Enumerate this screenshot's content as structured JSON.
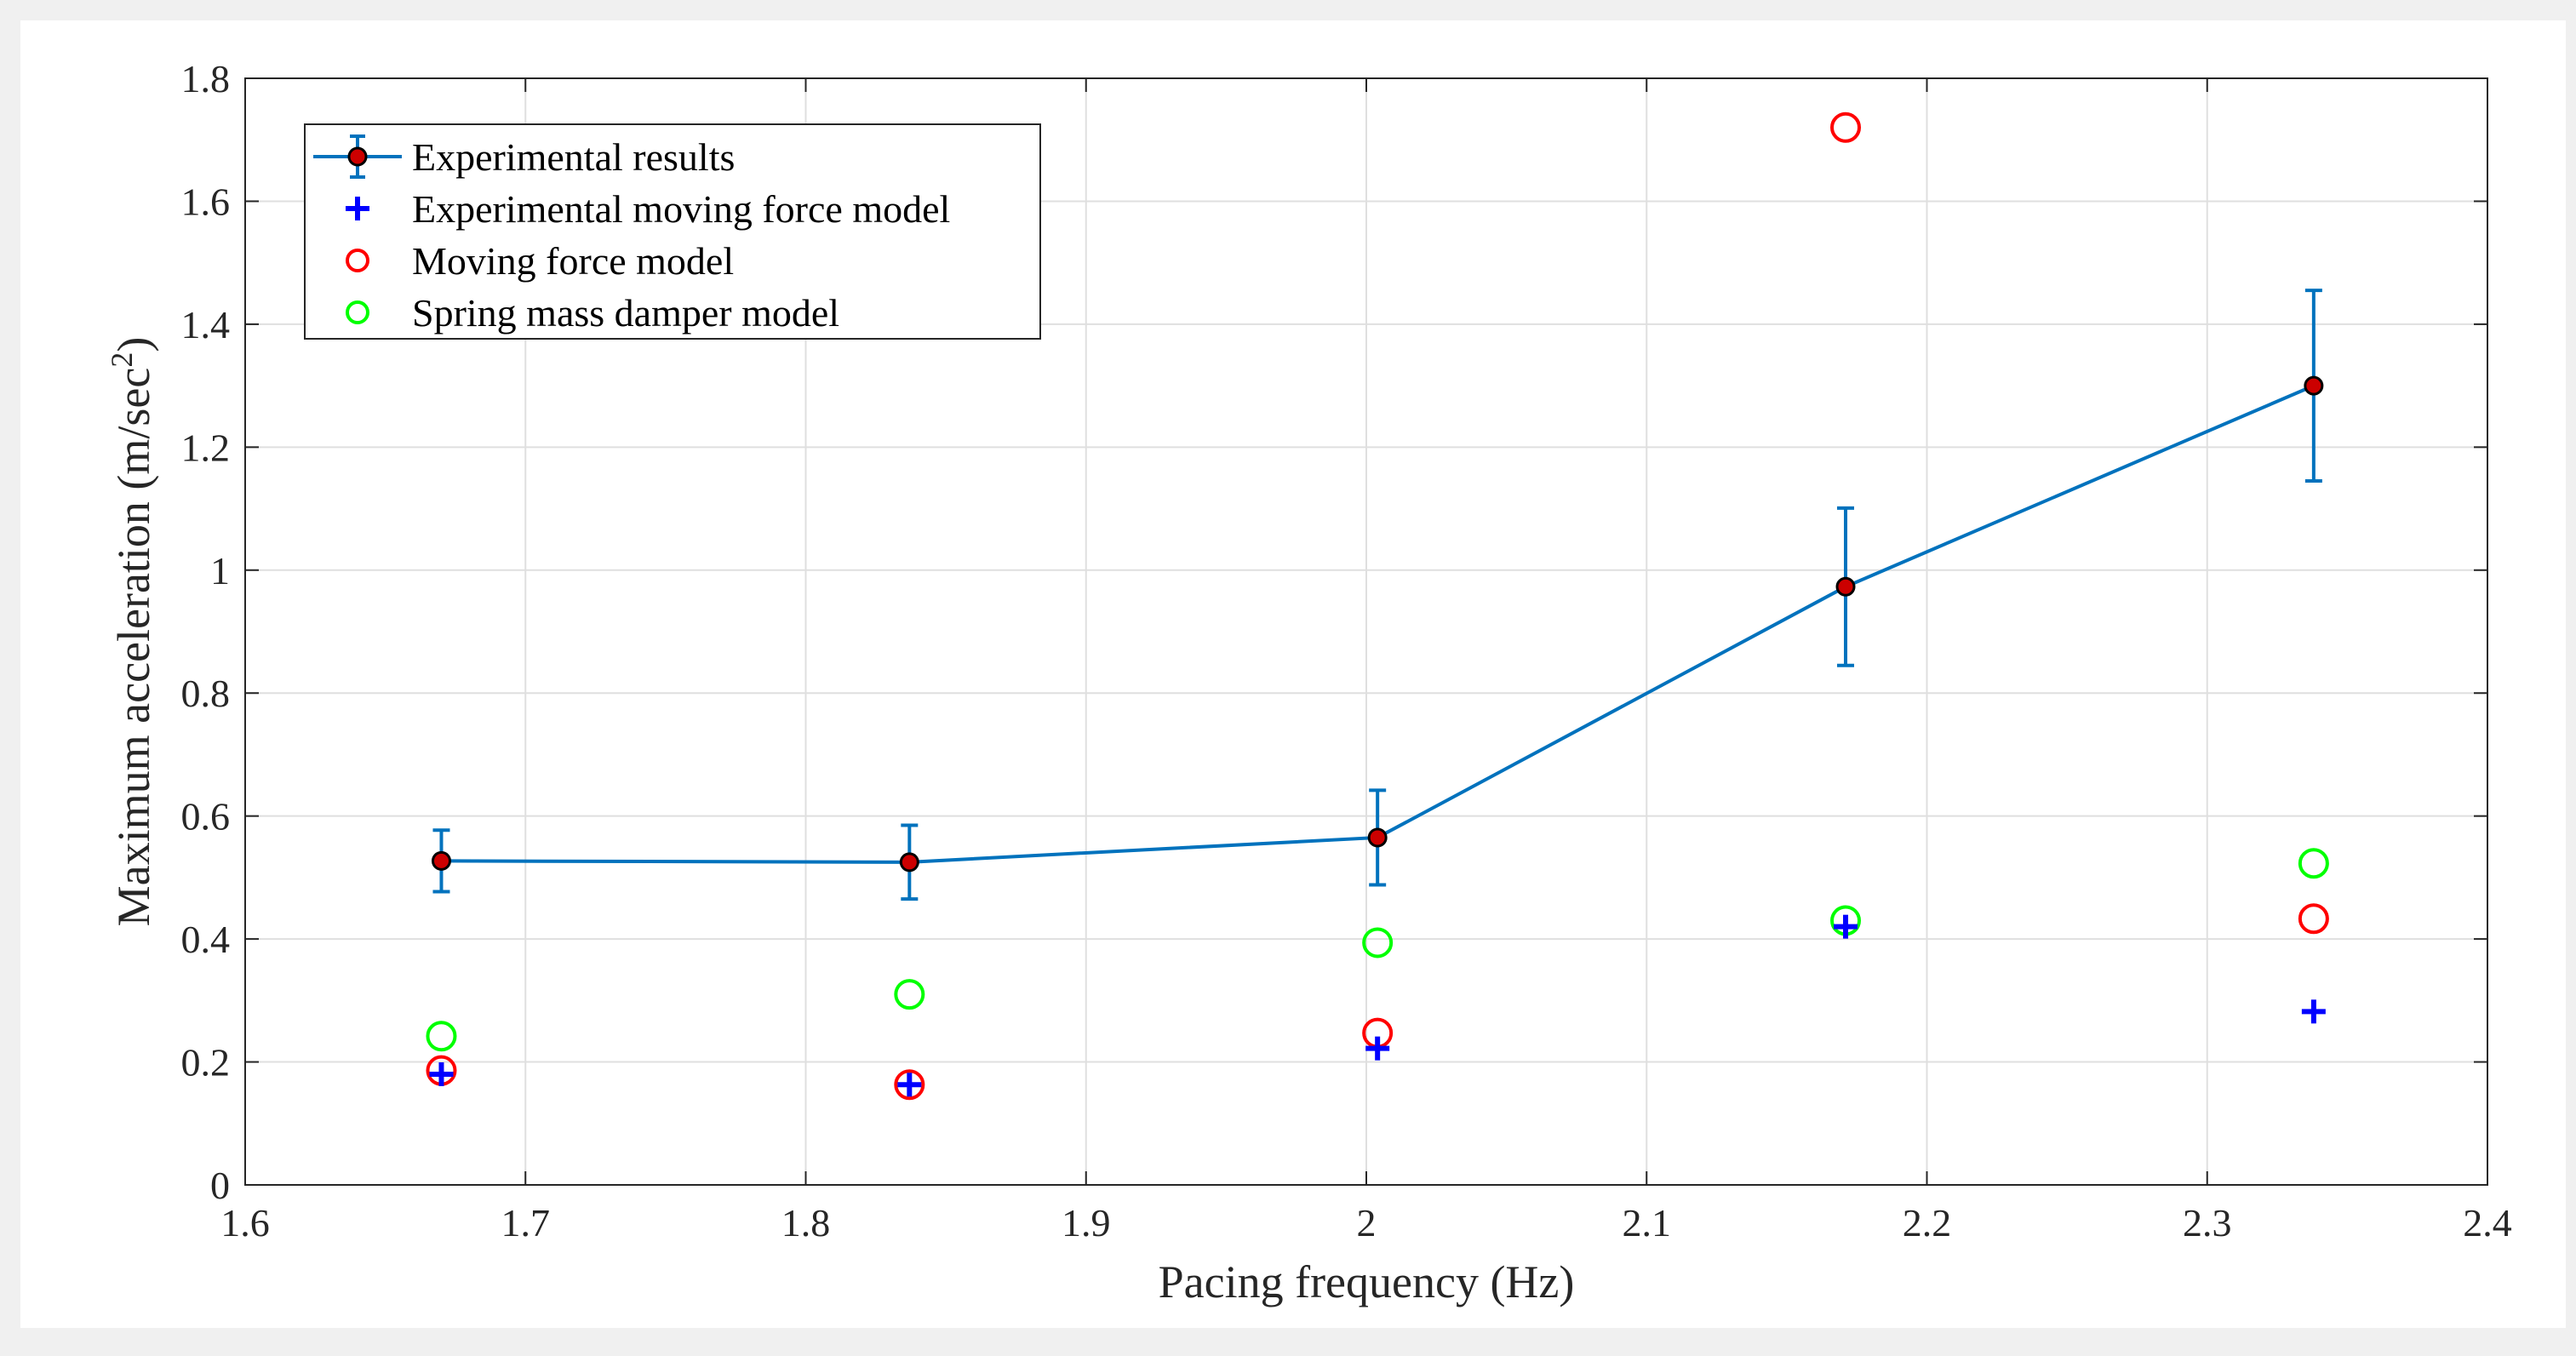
{
  "chart_data": {
    "type": "scatter",
    "xlabel": "Pacing frequency (Hz)",
    "ylabel": "Maximum acceleration (m/sec",
    "ylabel_superscript": "2",
    "ylabel_close": ")",
    "xlim": [
      1.6,
      2.4
    ],
    "ylim": [
      0,
      1.8
    ],
    "xticks": [
      "1.6",
      "1.7",
      "1.8",
      "1.9",
      "2",
      "2.1",
      "2.2",
      "2.3",
      "2.4"
    ],
    "yticks": [
      "0",
      "0.2",
      "0.4",
      "0.6",
      "0.8",
      "1",
      "1.2",
      "1.4",
      "1.6",
      "1.8"
    ],
    "grid": true,
    "legend_position": "top-left",
    "series": [
      {
        "name": "Experimental results",
        "kind": "line-errorbar",
        "color": "#0072BD",
        "marker_fill": "#cc0000",
        "x": [
          1.67,
          1.837,
          2.004,
          2.171,
          2.338
        ],
        "y": [
          0.527,
          0.525,
          0.565,
          0.973,
          1.3
        ],
        "err_low": [
          0.05,
          0.06,
          0.077,
          0.128,
          0.155
        ],
        "err_high": [
          0.05,
          0.06,
          0.077,
          0.128,
          0.155
        ]
      },
      {
        "name": "Experimental moving force model",
        "kind": "plus",
        "color": "#0000ff",
        "x": [
          1.67,
          1.837,
          2.004,
          2.171,
          2.338
        ],
        "y": [
          0.18,
          0.163,
          0.222,
          0.42,
          0.282
        ]
      },
      {
        "name": "Moving force model",
        "kind": "circle",
        "color": "#ff0000",
        "x": [
          1.67,
          1.837,
          2.004,
          2.171,
          2.338
        ],
        "y": [
          0.186,
          0.163,
          0.247,
          1.72,
          0.433
        ]
      },
      {
        "name": "Spring mass damper model",
        "kind": "circle",
        "color": "#00ff00",
        "x": [
          1.67,
          1.837,
          2.004,
          2.171,
          2.338
        ],
        "y": [
          0.242,
          0.31,
          0.394,
          0.43,
          0.523
        ]
      }
    ]
  }
}
